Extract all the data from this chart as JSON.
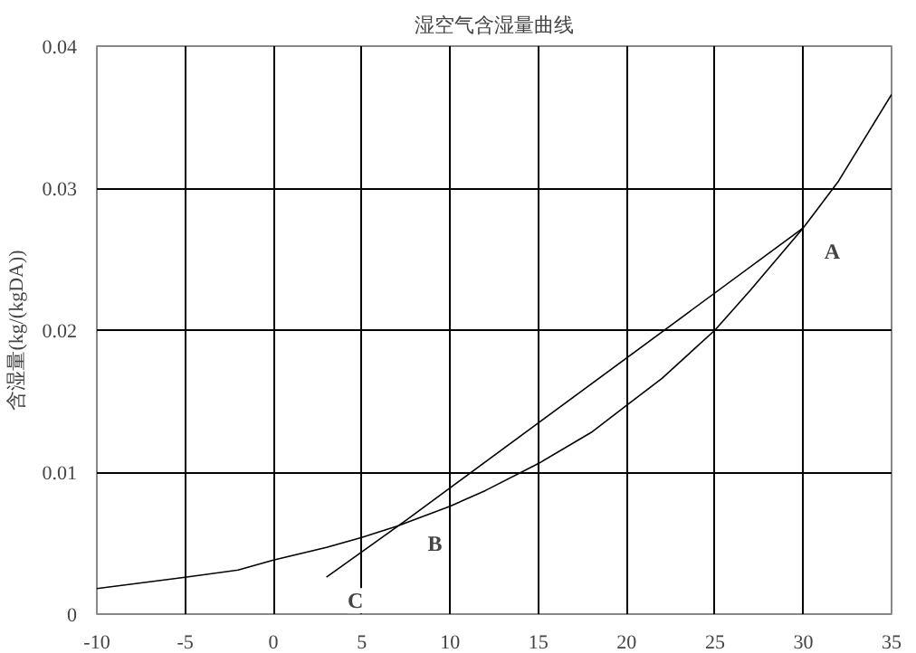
{
  "chart_data": {
    "type": "line",
    "title": "湿空气含湿量曲线",
    "ylabel": "含湿量(kg/(kgDA))",
    "xlim": [
      -10,
      35
    ],
    "xticks": [
      -10,
      -5,
      0,
      5,
      10,
      15,
      20,
      25,
      30,
      35
    ],
    "ylim": [
      0,
      0.04
    ],
    "yticks": [
      0,
      0.01,
      0.02,
      0.03,
      0.04
    ],
    "grid": true,
    "series": [
      {
        "color": "#000000",
        "x": [
          -10,
          -5,
          -2,
          0,
          3,
          5,
          7,
          10,
          12,
          15,
          18,
          20,
          22,
          25,
          27,
          30,
          32,
          35
        ],
        "values": [
          0.0018,
          0.0026,
          0.0031,
          0.0038,
          0.0047,
          0.0054,
          0.0062,
          0.0076,
          0.0087,
          0.0106,
          0.0128,
          0.0147,
          0.0166,
          0.02,
          0.0228,
          0.0272,
          0.0305,
          0.0366
        ]
      },
      {
        "color": "#000000",
        "x": [
          30,
          7.5,
          3
        ],
        "values": [
          0.0272,
          0.0066,
          0.0026
        ]
      }
    ],
    "annotations": [
      {
        "text": "A",
        "x": 30,
        "y": 0.0272
      },
      {
        "text": "B",
        "x": 7.5,
        "y": 0.0066
      },
      {
        "text": "C",
        "x": 3,
        "y": 0.0026
      }
    ]
  }
}
